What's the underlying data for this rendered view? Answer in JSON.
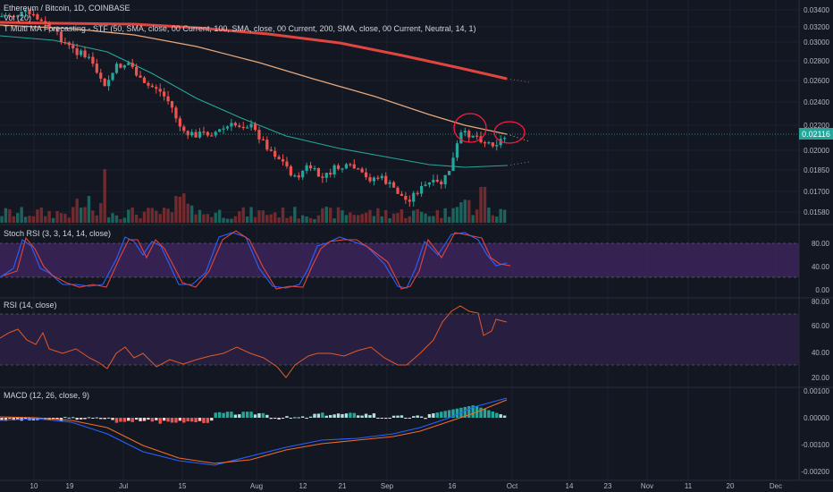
{
  "header": {
    "symbol_line": "Ethereum / Bitcoin, 1D, COINBASE",
    "ma_line": "T Multi MA Forecasting - STF (50, SMA, close, 00 Current, 100, SMA, close, 00 Current, 200, SMA, close, 00 Current, Neutral, 14, 1)",
    "vol_line": "Vol (20)"
  },
  "panes": {
    "stoch": {
      "title": "Stoch RSI (3, 3, 14, 14, close)"
    },
    "rsi": {
      "title": "RSI (14, close)"
    },
    "macd": {
      "title": "MACD (12, 26, close, 9)"
    }
  },
  "price_badge": {
    "value": "0.02116",
    "color": "#26a69a"
  },
  "colors": {
    "background": "#131722",
    "up": "#26a69a",
    "down": "#ef5350",
    "ma50": "#e6a77c",
    "ma100": "#26a69a",
    "ma200": "#e0453f",
    "stoch_k": "#2962ff",
    "stoch_d": "#e0453f",
    "band_fill": "#4a2a6e",
    "rsi_line": "#e05a2a",
    "macd_line": "#2962ff",
    "signal_line": "#ef6c2a",
    "annotation": "#ff1744"
  },
  "chart_data": [
    {
      "type": "candlestick",
      "pane": "price",
      "title": "Ethereum / Bitcoin, 1D, COINBASE",
      "y_ticks": [
        "0.03400",
        "0.03200",
        "0.03000",
        "0.02800",
        "0.02600",
        "0.02400",
        "0.02200",
        "0.02000",
        "0.01850",
        "0.01700",
        "0.01580"
      ],
      "x_ticks": [
        "10",
        "19",
        "Jul",
        "15",
        "Aug",
        "12",
        "21",
        "Sep",
        "16",
        "Oct",
        "14",
        "23",
        "Nov",
        "11",
        "20",
        "Dec"
      ],
      "last_price": 0.02116,
      "series": [
        {
          "name": "MA 50",
          "values_approx": [
            0.0325,
            0.0318,
            0.0305,
            0.029,
            0.0275,
            0.026,
            0.0245,
            0.023,
            0.0218,
            0.0208
          ]
        },
        {
          "name": "MA 100",
          "values_approx": [
            0.0328,
            0.0326,
            0.0318,
            0.0308,
            0.0288,
            0.0262,
            0.024,
            0.0222,
            0.0207,
            0.0195,
            0.0185,
            0.0187
          ]
        },
        {
          "name": "MA 200",
          "values_approx": [
            0.0331,
            0.0331,
            0.033,
            0.0325,
            0.0316,
            0.0303,
            0.029,
            0.0276,
            0.0262
          ]
        }
      ]
    },
    {
      "type": "bar",
      "pane": "volume",
      "title": "Vol (20)"
    },
    {
      "type": "line",
      "pane": "stoch",
      "title": "Stoch RSI (3, 3, 14, 14, close)",
      "y_ticks": [
        "80.00",
        "40.00",
        "0.00"
      ],
      "series": [
        {
          "name": "K"
        },
        {
          "name": "D"
        }
      ]
    },
    {
      "type": "line",
      "pane": "rsi",
      "title": "RSI (14, close)",
      "y_ticks": [
        "80.00",
        "60.00",
        "40.00",
        "20.00"
      ]
    },
    {
      "type": "bar",
      "pane": "macd",
      "title": "MACD (12, 26, close, 9)",
      "y_ticks": [
        "0.00100",
        "0.00000",
        "-0.00100",
        "-0.00200"
      ]
    }
  ]
}
